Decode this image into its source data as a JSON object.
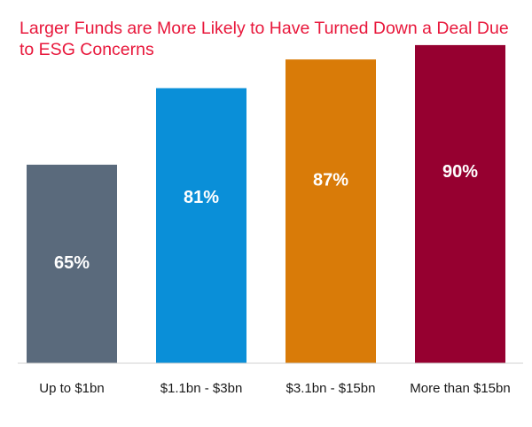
{
  "chart_data": {
    "type": "bar",
    "title": "Larger Funds are More Likely to Have Turned Down a Deal Due to ESG Concerns",
    "categories": [
      "Up to $1bn",
      "$1.1bn - $3bn",
      "$3.1bn - $15bn",
      "More than $15bn"
    ],
    "values": [
      65,
      81,
      87,
      90
    ],
    "value_labels": [
      "65%",
      "81%",
      "87%",
      "90%"
    ],
    "colors": [
      "#5a6a7c",
      "#0a8fd8",
      "#d97b08",
      "#960030"
    ],
    "title_color": "#e8173b",
    "grid": false
  }
}
